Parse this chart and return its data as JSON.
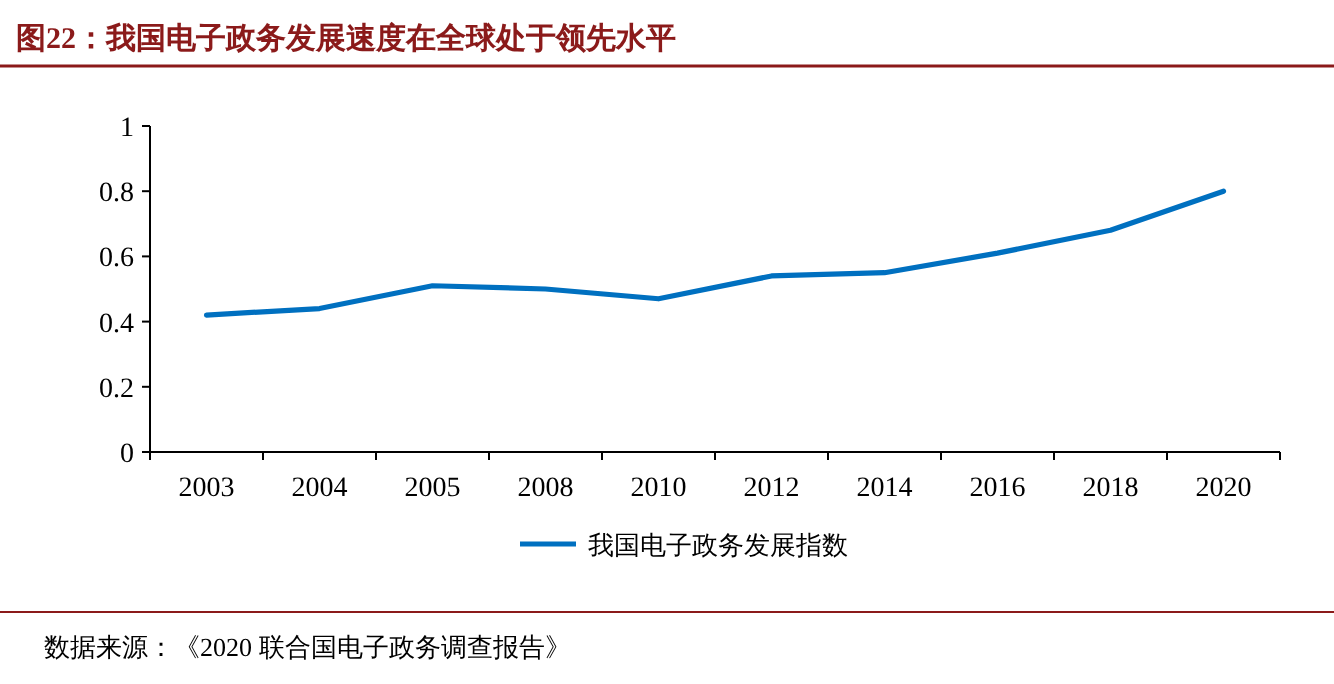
{
  "chart_data": {
    "type": "line",
    "title": "图22：我国电子政务发展速度在全球处于领先水平",
    "categories": [
      "2003",
      "2004",
      "2005",
      "2008",
      "2010",
      "2012",
      "2014",
      "2016",
      "2018",
      "2020"
    ],
    "series": [
      {
        "name": "我国电子政务发展指数",
        "color": "#0070c0",
        "values": [
          0.42,
          0.44,
          0.51,
          0.5,
          0.47,
          0.54,
          0.55,
          0.61,
          0.68,
          0.8
        ]
      }
    ],
    "ylim": [
      0,
      1
    ],
    "yticks": [
      0,
      {
        "value": 0.2,
        "label": "0.2"
      },
      {
        "value": 0.4,
        "label": "0.4"
      },
      {
        "value": 0.6,
        "label": "0.6"
      },
      {
        "value": 0.8,
        "label": "0.8"
      },
      1
    ],
    "grid": false,
    "legend": "bottom",
    "annotations": [
      "数据来源：《2020 联合国电子政务调查报告》"
    ]
  }
}
